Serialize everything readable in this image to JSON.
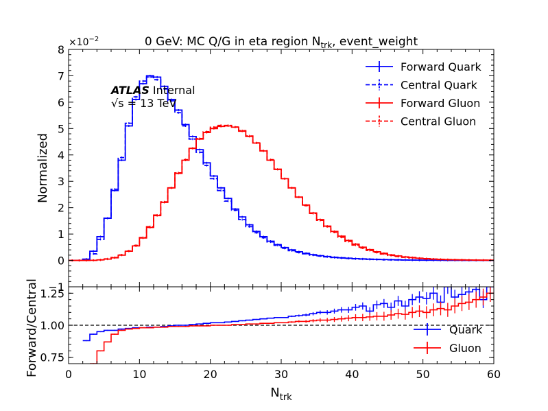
{
  "chart_data": [
    {
      "type": "line",
      "title": "0 GeV: MC Q/G in eta region N",
      "title_sub": "trk",
      "title_tail": ", event_weight",
      "ylabel": "Normalized",
      "y_scale_label": "×10",
      "y_scale_exp": "−2",
      "xlim": [
        0,
        60
      ],
      "ylim": [
        -1,
        8
      ],
      "yticks": [
        "−1",
        "0",
        "1",
        "2",
        "3",
        "4",
        "5",
        "6",
        "7",
        "8"
      ],
      "atlas_label": "ATLAS",
      "atlas_status": "Internal",
      "energy_label": "√s = 13 TeV",
      "legend_location": "upper right",
      "bin_edges_start": 0,
      "bin_width": 1,
      "series": [
        {
          "name": "Forward Quark",
          "style": "solid",
          "color": "#0000ff",
          "values": [
            0,
            0,
            0.05,
            0.35,
            0.9,
            1.6,
            2.65,
            3.8,
            5.1,
            6.1,
            6.7,
            7.0,
            6.95,
            6.6,
            6.1,
            5.7,
            5.15,
            4.7,
            4.2,
            3.7,
            3.2,
            2.75,
            2.35,
            1.95,
            1.65,
            1.35,
            1.1,
            0.9,
            0.73,
            0.6,
            0.49,
            0.4,
            0.33,
            0.27,
            0.22,
            0.18,
            0.15,
            0.12,
            0.1,
            0.085,
            0.07,
            0.058,
            0.048,
            0.04,
            0.033,
            0.027,
            0.022,
            0.018,
            0.015,
            0.012,
            0.01,
            0.008,
            0.007,
            0.006,
            0.005,
            0.004,
            0.003,
            0.003,
            0.002,
            0.002
          ]
        },
        {
          "name": "Central Quark",
          "style": "dashed",
          "color": "#0000ff",
          "values": [
            0,
            0,
            0.04,
            0.25,
            0.8,
            1.6,
            2.7,
            3.9,
            5.2,
            6.2,
            6.8,
            6.95,
            6.85,
            6.5,
            6.05,
            5.6,
            5.1,
            4.6,
            4.1,
            3.6,
            3.1,
            2.65,
            2.25,
            1.9,
            1.55,
            1.28,
            1.05,
            0.86,
            0.7,
            0.57,
            0.46,
            0.37,
            0.3,
            0.25,
            0.2,
            0.165,
            0.135,
            0.11,
            0.09,
            0.075,
            0.06,
            0.05,
            0.042,
            0.035,
            0.028,
            0.023,
            0.019,
            0.015,
            0.012,
            0.01,
            0.008,
            0.007,
            0.006,
            0.005,
            0.004,
            0.003,
            0.003,
            0.002,
            0.002,
            0.002
          ]
        },
        {
          "name": "Forward Gluon",
          "style": "solid",
          "color": "#ff0000",
          "values": [
            0,
            0,
            0,
            0.005,
            0.02,
            0.05,
            0.1,
            0.2,
            0.35,
            0.55,
            0.85,
            1.25,
            1.7,
            2.2,
            2.75,
            3.3,
            3.8,
            4.25,
            4.6,
            4.85,
            5.0,
            5.08,
            5.1,
            5.05,
            4.9,
            4.7,
            4.45,
            4.15,
            3.8,
            3.45,
            3.1,
            2.75,
            2.4,
            2.1,
            1.8,
            1.55,
            1.3,
            1.1,
            0.92,
            0.76,
            0.62,
            0.5,
            0.41,
            0.33,
            0.27,
            0.21,
            0.17,
            0.135,
            0.11,
            0.085,
            0.068,
            0.054,
            0.043,
            0.034,
            0.027,
            0.022,
            0.018,
            0.015,
            0.012,
            0.01
          ]
        },
        {
          "name": "Central Gluon",
          "style": "dashed",
          "color": "#ff0000",
          "values": [
            0,
            0,
            0,
            0.005,
            0.02,
            0.06,
            0.11,
            0.21,
            0.36,
            0.57,
            0.87,
            1.28,
            1.72,
            2.22,
            2.75,
            3.32,
            3.82,
            4.25,
            4.62,
            4.88,
            5.05,
            5.12,
            5.12,
            5.06,
            4.92,
            4.72,
            4.46,
            4.16,
            3.82,
            3.46,
            3.1,
            2.75,
            2.4,
            2.08,
            1.78,
            1.52,
            1.28,
            1.07,
            0.88,
            0.72,
            0.58,
            0.47,
            0.38,
            0.3,
            0.24,
            0.19,
            0.15,
            0.12,
            0.095,
            0.075,
            0.058,
            0.046,
            0.036,
            0.028,
            0.022,
            0.017,
            0.014,
            0.011,
            0.009,
            0.007
          ]
        }
      ]
    },
    {
      "type": "line",
      "ylabel": "Forward/Central",
      "xlabel": "N",
      "xlabel_sub": "trk",
      "xlim": [
        0,
        60
      ],
      "ylim": [
        0.7,
        1.3
      ],
      "xticks": [
        "0",
        "10",
        "20",
        "30",
        "40",
        "50",
        "60"
      ],
      "yticks": [
        "0.75",
        "1.00",
        "1.25"
      ],
      "reference_line": 1.0,
      "legend_location": "lower right",
      "series": [
        {
          "name": "Quark",
          "color": "#0000ff",
          "values": [
            null,
            null,
            0.88,
            0.93,
            0.95,
            0.96,
            0.96,
            0.97,
            0.975,
            0.98,
            0.98,
            0.985,
            0.985,
            0.99,
            0.995,
            1.0,
            1.0,
            1.005,
            1.01,
            1.015,
            1.02,
            1.02,
            1.025,
            1.03,
            1.035,
            1.04,
            1.045,
            1.05,
            1.055,
            1.06,
            1.06,
            1.07,
            1.075,
            1.08,
            1.09,
            1.1,
            1.1,
            1.11,
            1.12,
            1.12,
            1.14,
            1.15,
            1.11,
            1.16,
            1.17,
            1.14,
            1.19,
            1.15,
            1.2,
            1.22,
            1.21,
            1.25,
            1.18,
            1.3,
            1.22,
            1.24,
            1.26,
            1.28,
            1.2,
            1.3
          ]
        },
        {
          "name": "Gluon",
          "color": "#ff0000",
          "values": [
            null,
            null,
            null,
            0.7,
            0.8,
            0.87,
            0.93,
            0.96,
            0.97,
            0.975,
            0.98,
            0.98,
            0.985,
            0.985,
            0.99,
            0.99,
            0.99,
            0.995,
            0.995,
            0.995,
            1.0,
            1.0,
            1.0,
            1.005,
            1.005,
            1.01,
            1.01,
            1.015,
            1.015,
            1.02,
            1.02,
            1.025,
            1.03,
            1.03,
            1.035,
            1.04,
            1.04,
            1.045,
            1.05,
            1.055,
            1.06,
            1.06,
            1.065,
            1.07,
            1.07,
            1.08,
            1.09,
            1.085,
            1.1,
            1.11,
            1.1,
            1.12,
            1.13,
            1.12,
            1.15,
            1.17,
            1.18,
            1.2,
            1.22,
            1.25
          ]
        }
      ]
    }
  ]
}
